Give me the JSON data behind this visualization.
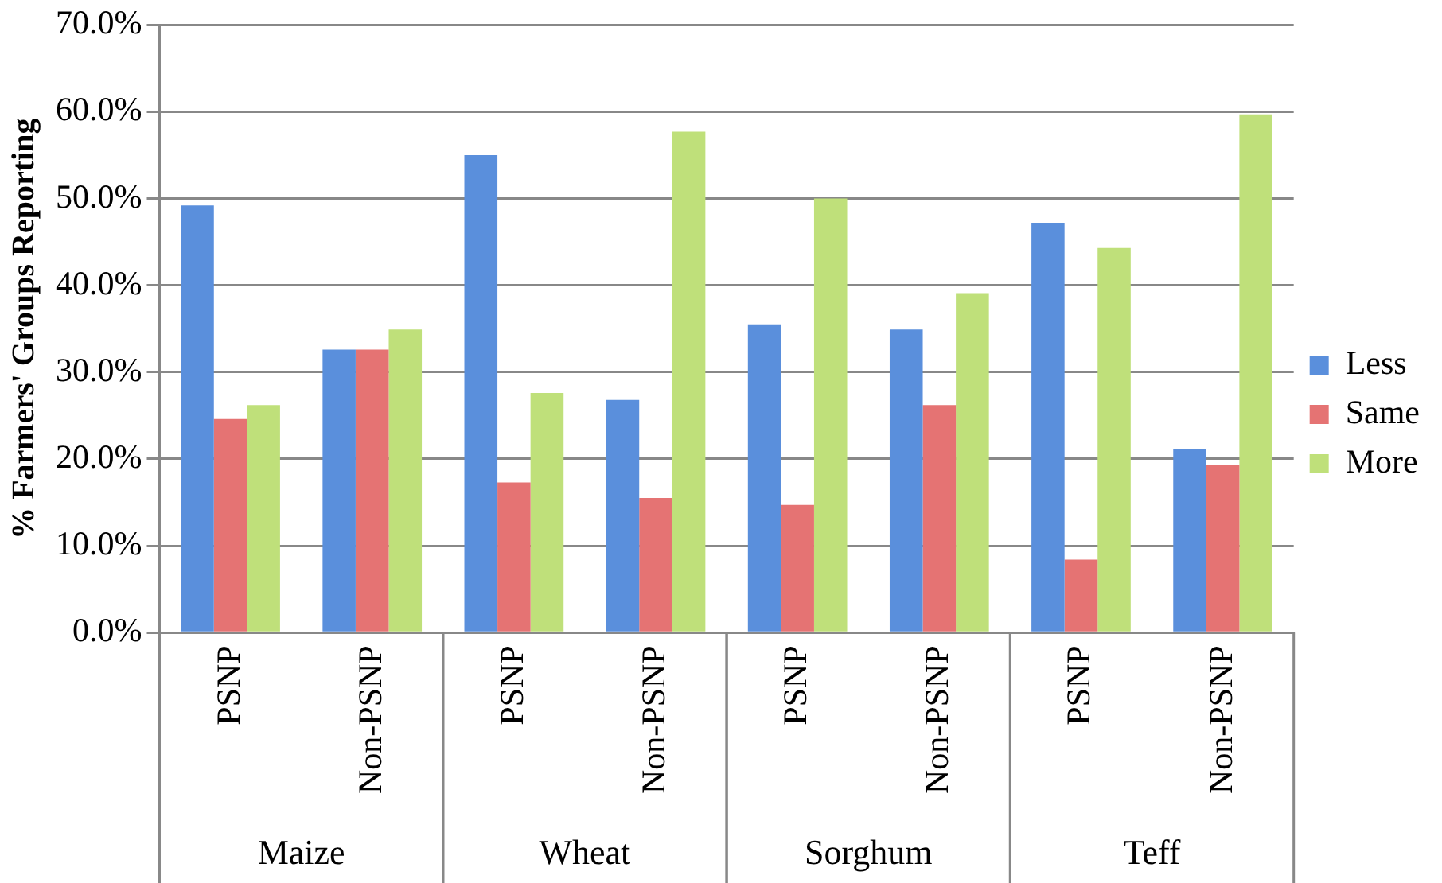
{
  "chart_data": {
    "type": "bar",
    "ylabel": "% Farmers' Groups Reporting",
    "categories": [
      "PSNP",
      "Non-PSNP",
      "PSNP",
      "Non-PSNP",
      "PSNP",
      "Non-PSNP",
      "PSNP",
      "Non-PSNP"
    ],
    "annotations": [
      "Maize",
      "Wheat",
      "Sorghum",
      "Teff"
    ],
    "series": [
      {
        "name": "Less",
        "color": "#5a8fdc",
        "values": [
          49.2,
          32.6,
          55.0,
          26.8,
          35.5,
          34.9,
          47.2,
          21.1
        ]
      },
      {
        "name": "Same",
        "color": "#e57373",
        "values": [
          24.6,
          32.6,
          17.3,
          15.5,
          14.7,
          26.2,
          8.4,
          19.3
        ]
      },
      {
        "name": "More",
        "color": "#bfe07a",
        "values": [
          26.2,
          34.9,
          27.6,
          57.7,
          50.0,
          39.1,
          44.3,
          59.7
        ]
      }
    ],
    "ylim": [
      0,
      70
    ],
    "yticks": [
      {
        "value": 0,
        "label": "0.0%"
      },
      {
        "value": 10,
        "label": "10.0%"
      },
      {
        "value": 20,
        "label": "20.0%"
      },
      {
        "value": 30,
        "label": "30.0%"
      },
      {
        "value": 40,
        "label": "40.0%"
      },
      {
        "value": 50,
        "label": "50.0%"
      },
      {
        "value": 60,
        "label": "60.0%"
      },
      {
        "value": 70,
        "label": "70.0%"
      }
    ],
    "grid": "y",
    "legend": "right"
  }
}
